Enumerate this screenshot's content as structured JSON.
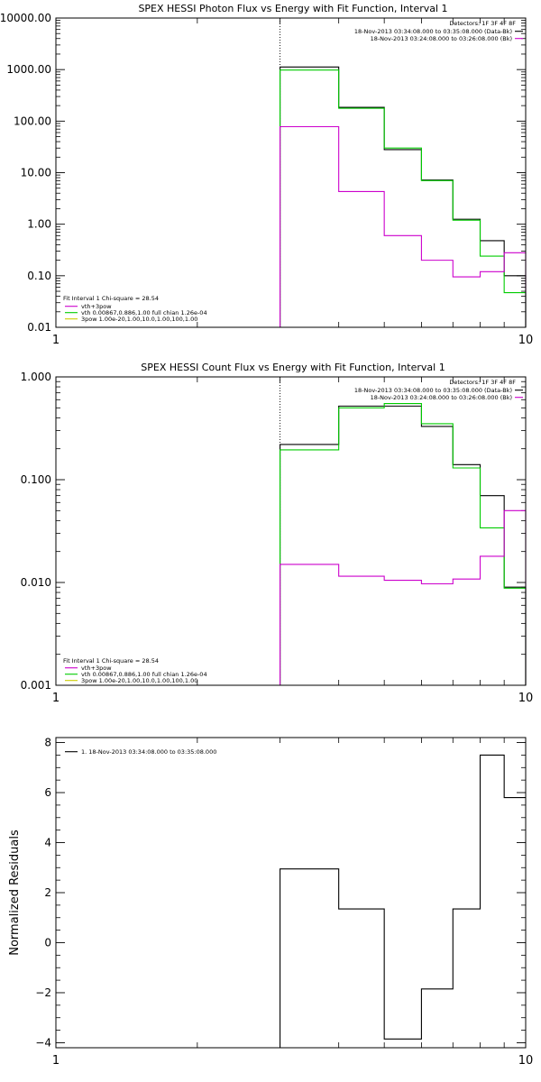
{
  "chart_data": [
    {
      "type": "line",
      "title": "SPEX HESSI Photon Flux vs Energy with Fit Function, Interval 1",
      "xlabel": "",
      "ylabel": "",
      "x_scale": "log",
      "y_scale": "log",
      "xlim": [
        1,
        10
      ],
      "ylim": [
        0.01,
        10000
      ],
      "x_ticks": [
        {
          "value": 1,
          "label": "1"
        },
        {
          "value": 10,
          "label": "10"
        }
      ],
      "y_ticks": [
        {
          "value": 0.01,
          "label": "0.01"
        },
        {
          "value": 0.1,
          "label": "0.10"
        },
        {
          "value": 1,
          "label": "1.00"
        },
        {
          "value": 10,
          "label": "10.00"
        },
        {
          "value": 100,
          "label": "100.00"
        },
        {
          "value": 1000,
          "label": "1000.00"
        },
        {
          "value": 10000,
          "label": "10000.00"
        }
      ],
      "vline_x": 3,
      "legend_top_right": {
        "header": "Detectors: 1F 3F 4F 8F",
        "entries": [
          {
            "text": "18-Nov-2013 03:34:08.000 to 03:35:08.000 (Data-Bk)",
            "color": "#000000"
          },
          {
            "text": "18-Nov-2013 03:24:08.000 to 03:26:08.000 (Bk)",
            "color": "#cc00cc"
          }
        ]
      },
      "legend_bottom_left": {
        "header": "Fit Interval 1   Chi-square = 28.54",
        "entries": [
          {
            "text": "vth+3pow",
            "color": "#cc00cc"
          },
          {
            "text": "vth 0.00867,0.886,1.00  full chian 1.26e-04",
            "color": "#00cc00"
          },
          {
            "text": "3pow 1.00e-20,1.00,10.0,1.00,100,1.00",
            "color": "#cccc00"
          }
        ]
      },
      "bin_edges": [
        3,
        4,
        5,
        6,
        7,
        8,
        9,
        10
      ],
      "series": [
        {
          "color": "#000000",
          "values": [
            1120,
            185,
            28,
            7.2,
            1.25,
            0.48,
            0.1
          ]
        },
        {
          "color": "#00cc00",
          "values": [
            980,
            178,
            30,
            7.0,
            1.2,
            0.24,
            0.047
          ]
        },
        {
          "color": "#cc00cc",
          "values": [
            78,
            4.3,
            0.6,
            0.2,
            0.095,
            0.12,
            0.28
          ]
        }
      ],
      "series_tail_drop": 0.01
    },
    {
      "type": "line",
      "title": "SPEX HESSI Count Flux vs Energy with Fit Function, Interval 1",
      "xlabel": "",
      "ylabel": "",
      "x_scale": "log",
      "y_scale": "log",
      "xlim": [
        1,
        10
      ],
      "ylim": [
        0.001,
        1
      ],
      "x_ticks": [
        {
          "value": 1,
          "label": "1"
        },
        {
          "value": 10,
          "label": "10"
        }
      ],
      "y_ticks": [
        {
          "value": 0.001,
          "label": "0.001"
        },
        {
          "value": 0.01,
          "label": "0.010"
        },
        {
          "value": 0.1,
          "label": "0.100"
        },
        {
          "value": 1,
          "label": "1.000"
        }
      ],
      "vline_x": 3,
      "legend_top_right": {
        "header": "Detectors: 1F 3F 4F 8F",
        "entries": [
          {
            "text": "18-Nov-2013 03:34:08.000 to 03:35:08.000 (Data-Bk)",
            "color": "#000000"
          },
          {
            "text": "18-Nov-2013 03:24:08.000 to 03:26:08.000 (Bk)",
            "color": "#cc00cc"
          }
        ]
      },
      "legend_bottom_left": {
        "header": "Fit Interval 1   Chi-square = 28.54",
        "entries": [
          {
            "text": "vth+3pow",
            "color": "#cc00cc"
          },
          {
            "text": "vth 0.00867,0.886,1.00  full chian 1.26e-04",
            "color": "#00cc00"
          },
          {
            "text": "3pow 1.00e-20,1.00,10.0,1.00,100,1.00",
            "color": "#cccc00"
          }
        ]
      },
      "bin_edges": [
        3,
        4,
        5,
        6,
        7,
        8,
        9,
        10
      ],
      "series": [
        {
          "color": "#000000",
          "values": [
            0.22,
            0.52,
            0.52,
            0.33,
            0.14,
            0.07,
            0.009
          ]
        },
        {
          "color": "#00cc00",
          "values": [
            0.195,
            0.5,
            0.55,
            0.35,
            0.13,
            0.034,
            0.0088
          ]
        },
        {
          "color": "#cc00cc",
          "values": [
            0.015,
            0.0115,
            0.0105,
            0.0097,
            0.0108,
            0.018,
            0.05
          ]
        }
      ],
      "series_tail_drop": 0.002
    },
    {
      "type": "line",
      "title": "",
      "xlabel": "",
      "ylabel": "Normalized Residuals",
      "x_scale": "log",
      "y_scale": "linear",
      "xlim": [
        1,
        10
      ],
      "ylim": [
        -4.2,
        8.2
      ],
      "x_ticks": [
        {
          "value": 1,
          "label": "1"
        },
        {
          "value": 10,
          "label": "10"
        }
      ],
      "y_ticks": [
        {
          "value": -4,
          "label": "−4"
        },
        {
          "value": -2,
          "label": "−2"
        },
        {
          "value": 0,
          "label": "0"
        },
        {
          "value": 2,
          "label": "2"
        },
        {
          "value": 4,
          "label": "4"
        },
        {
          "value": 6,
          "label": "6"
        },
        {
          "value": 8,
          "label": "8"
        }
      ],
      "legend_top_left": {
        "entries": [
          {
            "text": "1. 18-Nov-2013 03:34:08.000 to 03:35:08.000",
            "color": "#000000"
          }
        ]
      },
      "bin_edges": [
        3,
        4,
        5,
        6,
        7,
        8,
        9,
        10
      ],
      "series": [
        {
          "color": "#000000",
          "values": [
            2.95,
            1.35,
            -3.85,
            -1.85,
            1.35,
            7.5,
            5.8
          ]
        }
      ],
      "series_start_drop": -4.2
    }
  ]
}
